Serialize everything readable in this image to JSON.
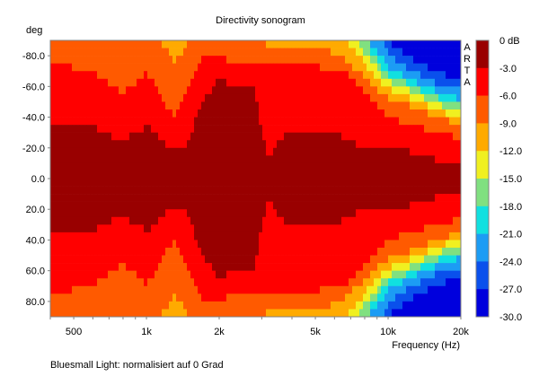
{
  "chart_data": {
    "type": "heatmap",
    "title": "Directivity sonogram",
    "ylabel": "deg",
    "xlabel": "Frequency (Hz)",
    "x_scale": "log",
    "xlim": [
      400,
      20000
    ],
    "ylim": [
      -90,
      90
    ],
    "x_ticks": [
      500,
      1000,
      2000,
      5000,
      10000,
      20000
    ],
    "x_tick_labels": [
      "500",
      "1k",
      "2k",
      "5k",
      "10k",
      "20k"
    ],
    "y_ticks": [
      -80,
      -60,
      -40,
      -20,
      0,
      20,
      40,
      60,
      80
    ],
    "y_tick_labels": [
      "-80.0",
      "-60.0",
      "-40.0",
      "-20.0",
      "0.0",
      "20.0",
      "40.0",
      "60.0",
      "80.0"
    ],
    "colorbar": {
      "labels": [
        "0 dB",
        "-3.0",
        "-6.0",
        "-9.0",
        "-12.0",
        "-15.0",
        "-18.0",
        "-21.0",
        "-24.0",
        "-27.0",
        "-30.0"
      ],
      "levels": [
        0,
        -3,
        -6,
        -9,
        -12,
        -15,
        -18,
        -21,
        -24,
        -27,
        -30
      ],
      "colors": [
        "#990000",
        "#ff0000",
        "#ff5a00",
        "#ffaa00",
        "#f0f020",
        "#80e080",
        "#10e0e0",
        "#1c9cf4",
        "#0a50ec",
        "#0000dd"
      ]
    },
    "contour_levels_db": [
      -3,
      -6,
      -9,
      -12,
      -15,
      -18,
      -21,
      -24,
      -27
    ],
    "contour_half_angles_note": "off-axis angle (deg) where each level is reached, per frequency",
    "contours": [
      {
        "f": 400,
        "angles": [
          37,
          77,
          100
        ]
      },
      {
        "f": 500,
        "angles": [
          35,
          72,
          100
        ]
      },
      {
        "f": 600,
        "angles": [
          34,
          70,
          100
        ]
      },
      {
        "f": 700,
        "angles": [
          28,
          62,
          95
        ]
      },
      {
        "f": 800,
        "angles": [
          25,
          56,
          95
        ]
      },
      {
        "f": 900,
        "angles": [
          30,
          62,
          95
        ]
      },
      {
        "f": 1000,
        "angles": [
          34,
          70,
          98
        ]
      },
      {
        "f": 1100,
        "angles": [
          30,
          60,
          95
        ]
      },
      {
        "f": 1200,
        "angles": [
          22,
          45,
          85
        ]
      },
      {
        "f": 1300,
        "angles": [
          20,
          42,
          75,
          95
        ]
      },
      {
        "f": 1400,
        "angles": [
          20,
          48,
          82
        ]
      },
      {
        "f": 1500,
        "angles": [
          25,
          60,
          92
        ]
      },
      {
        "f": 1700,
        "angles": [
          50,
          78,
          100
        ]
      },
      {
        "f": 1900,
        "angles": [
          60,
          81,
          100
        ]
      },
      {
        "f": 2000,
        "angles": [
          68,
          80,
          100
        ]
      },
      {
        "f": 2200,
        "angles": [
          60,
          76,
          100
        ]
      },
      {
        "f": 2500,
        "angles": [
          60,
          77,
          95
        ]
      },
      {
        "f": 2800,
        "angles": [
          60,
          77,
          90
        ]
      },
      {
        "f": 3000,
        "angles": [
          30,
          75,
          88
        ]
      },
      {
        "f": 3200,
        "angles": [
          14,
          73,
          87
        ]
      },
      {
        "f": 3800,
        "angles": [
          30,
          73,
          86
        ]
      },
      {
        "f": 4500,
        "angles": [
          30,
          73,
          85
        ]
      },
      {
        "f": 6000,
        "angles": [
          30,
          72,
          82,
          95
        ]
      },
      {
        "f": 6700,
        "angles": [
          25,
          68,
          76,
          88
        ]
      },
      {
        "f": 7500,
        "angles": [
          22,
          62,
          70,
          80,
          88
        ]
      },
      {
        "f": 8500,
        "angles": [
          22,
          52,
          62,
          70,
          76,
          82,
          88
        ]
      },
      {
        "f": 10000,
        "angles": [
          22,
          40,
          52,
          58,
          63,
          68,
          73,
          80,
          90
        ]
      },
      {
        "f": 12000,
        "angles": [
          18,
          36,
          48,
          53,
          58,
          62,
          66,
          72,
          80
        ]
      },
      {
        "f": 14000,
        "angles": [
          15,
          33,
          44,
          49,
          53,
          57,
          61,
          66,
          74
        ]
      },
      {
        "f": 17000,
        "angles": [
          11,
          28,
          38,
          43,
          47,
          51,
          55,
          60,
          68
        ]
      },
      {
        "f": 20000,
        "angles": [
          11,
          27,
          36,
          40,
          44,
          48,
          52,
          58,
          65
        ]
      }
    ],
    "watermark": "ARTA",
    "grid": false
  },
  "footer": "Bluesmall Light: normalisiert auf 0 Grad"
}
